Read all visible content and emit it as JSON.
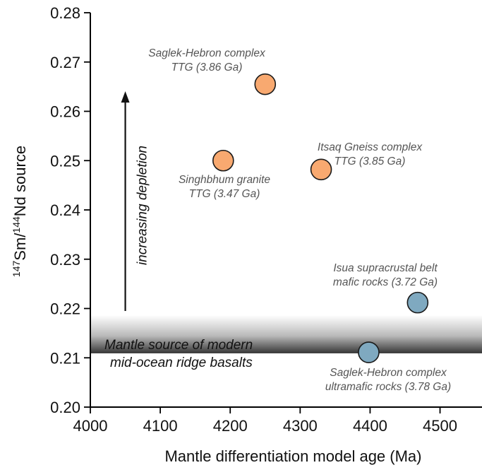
{
  "chart_data": {
    "type": "scatter",
    "title": "",
    "xlabel": "Mantle differentiation model age (Ma)",
    "ylabel_parts": [
      "147",
      "Sm/",
      "144",
      "Nd source"
    ],
    "xlim": [
      4000,
      4560
    ],
    "ylim": [
      0.2,
      0.28
    ],
    "x_ticks": [
      4000,
      4100,
      4200,
      4300,
      4400,
      4500
    ],
    "x_tick_labels": [
      "4000",
      "4100",
      "4200",
      "4300",
      "4400",
      "4500"
    ],
    "y_ticks": [
      0.2,
      0.21,
      0.22,
      0.23,
      0.24,
      0.25,
      0.26,
      0.27,
      0.28
    ],
    "y_tick_labels": [
      "0.20",
      "0.21",
      "0.22",
      "0.23",
      "0.24",
      "0.25",
      "0.26",
      "0.27",
      "0.28"
    ],
    "grid": false,
    "points": [
      {
        "x": 4250,
        "y": 0.2655,
        "color": "#f8a970",
        "label_lines": [
          "Saglek-Hebron complex",
          "TTG (3.86 Ga)"
        ]
      },
      {
        "x": 4190,
        "y": 0.25,
        "color": "#f8a970",
        "label_lines": [
          "Singhbhum granite",
          "TTG (3.47 Ga)"
        ]
      },
      {
        "x": 4330,
        "y": 0.2482,
        "color": "#f8a970",
        "label_lines": [
          "Itsaq Gneiss complex",
          "TTG (3.85 Ga)"
        ]
      },
      {
        "x": 4468,
        "y": 0.2212,
        "color": "#7fa9c0",
        "label_lines": [
          "Isua supracrustal belt",
          "mafic rocks (3.72 Ga)"
        ]
      },
      {
        "x": 4398,
        "y": 0.2111,
        "color": "#7fa9c0",
        "label_lines": [
          "Saglek-Hebron complex",
          "ultramafic rocks (3.78 Ga)"
        ]
      }
    ],
    "band": {
      "y_range": [
        0.211,
        0.2155
      ],
      "label_lines": [
        "Mantle source of modern",
        "mid-ocean ridge basalts"
      ]
    },
    "arrow": {
      "x": 4050,
      "y_from": 0.2195,
      "y_to": 0.2635,
      "label": "increasing depletion"
    }
  }
}
